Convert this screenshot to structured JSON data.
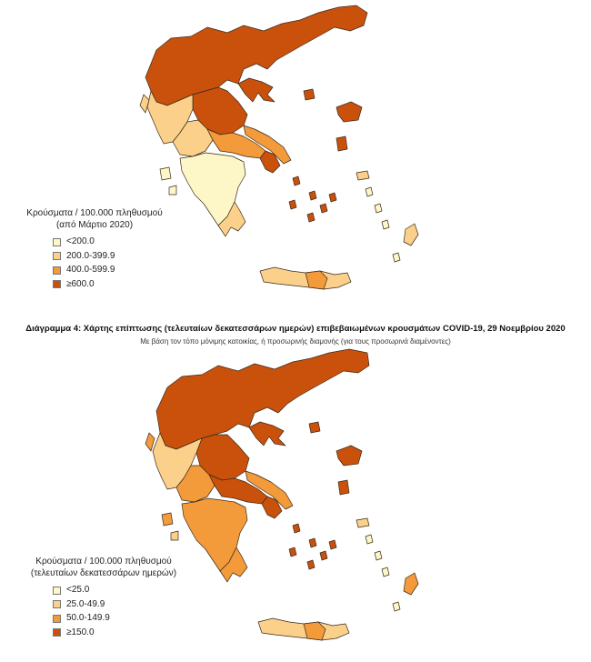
{
  "colors": {
    "c1": "#fdf7c8",
    "c2": "#fbd08a",
    "c3": "#f39a3a",
    "c4": "#c9510c",
    "border": "#3a2a1a"
  },
  "map1": {
    "legend_title_1": "Κρούσματα / 100.000 πληθυσμού",
    "legend_title_2": "(από Μάρτιο 2020)",
    "classes": [
      {
        "label": "<200.0",
        "color": "#fdf7c8"
      },
      {
        "label": "200.0-399.9",
        "color": "#fbd08a"
      },
      {
        "label": "400.0-599.9",
        "color": "#f39a3a"
      },
      {
        "label": "≥600.0",
        "color": "#c9510c"
      }
    ]
  },
  "caption": {
    "title": "Διάγραμμα 4: Χάρτης επίπτωσης (τελευταίων δεκατεσσάρων ημερών) επιβεβαιωμένων κρουσμάτων COVID-19, 29 Νοεμβρίου 2020",
    "subtitle": "Με βάση τον τόπο μόνιμης κατοικίας, ή προσωρινής διαμονής (για τους προσωρινά διαμένοντες)"
  },
  "map2": {
    "legend_title_1": "Κρούσματα / 100.000 πληθυσμού",
    "legend_title_2": "(τελευταίων δεκατεσσάρων ημερών)",
    "classes": [
      {
        "label": "<25.0",
        "color": "#fdf7c8"
      },
      {
        "label": "25.0-49.9",
        "color": "#fbd08a"
      },
      {
        "label": "50.0-149.9",
        "color": "#f39a3a"
      },
      {
        "label": "≥150.0",
        "color": "#c9510c"
      }
    ]
  }
}
